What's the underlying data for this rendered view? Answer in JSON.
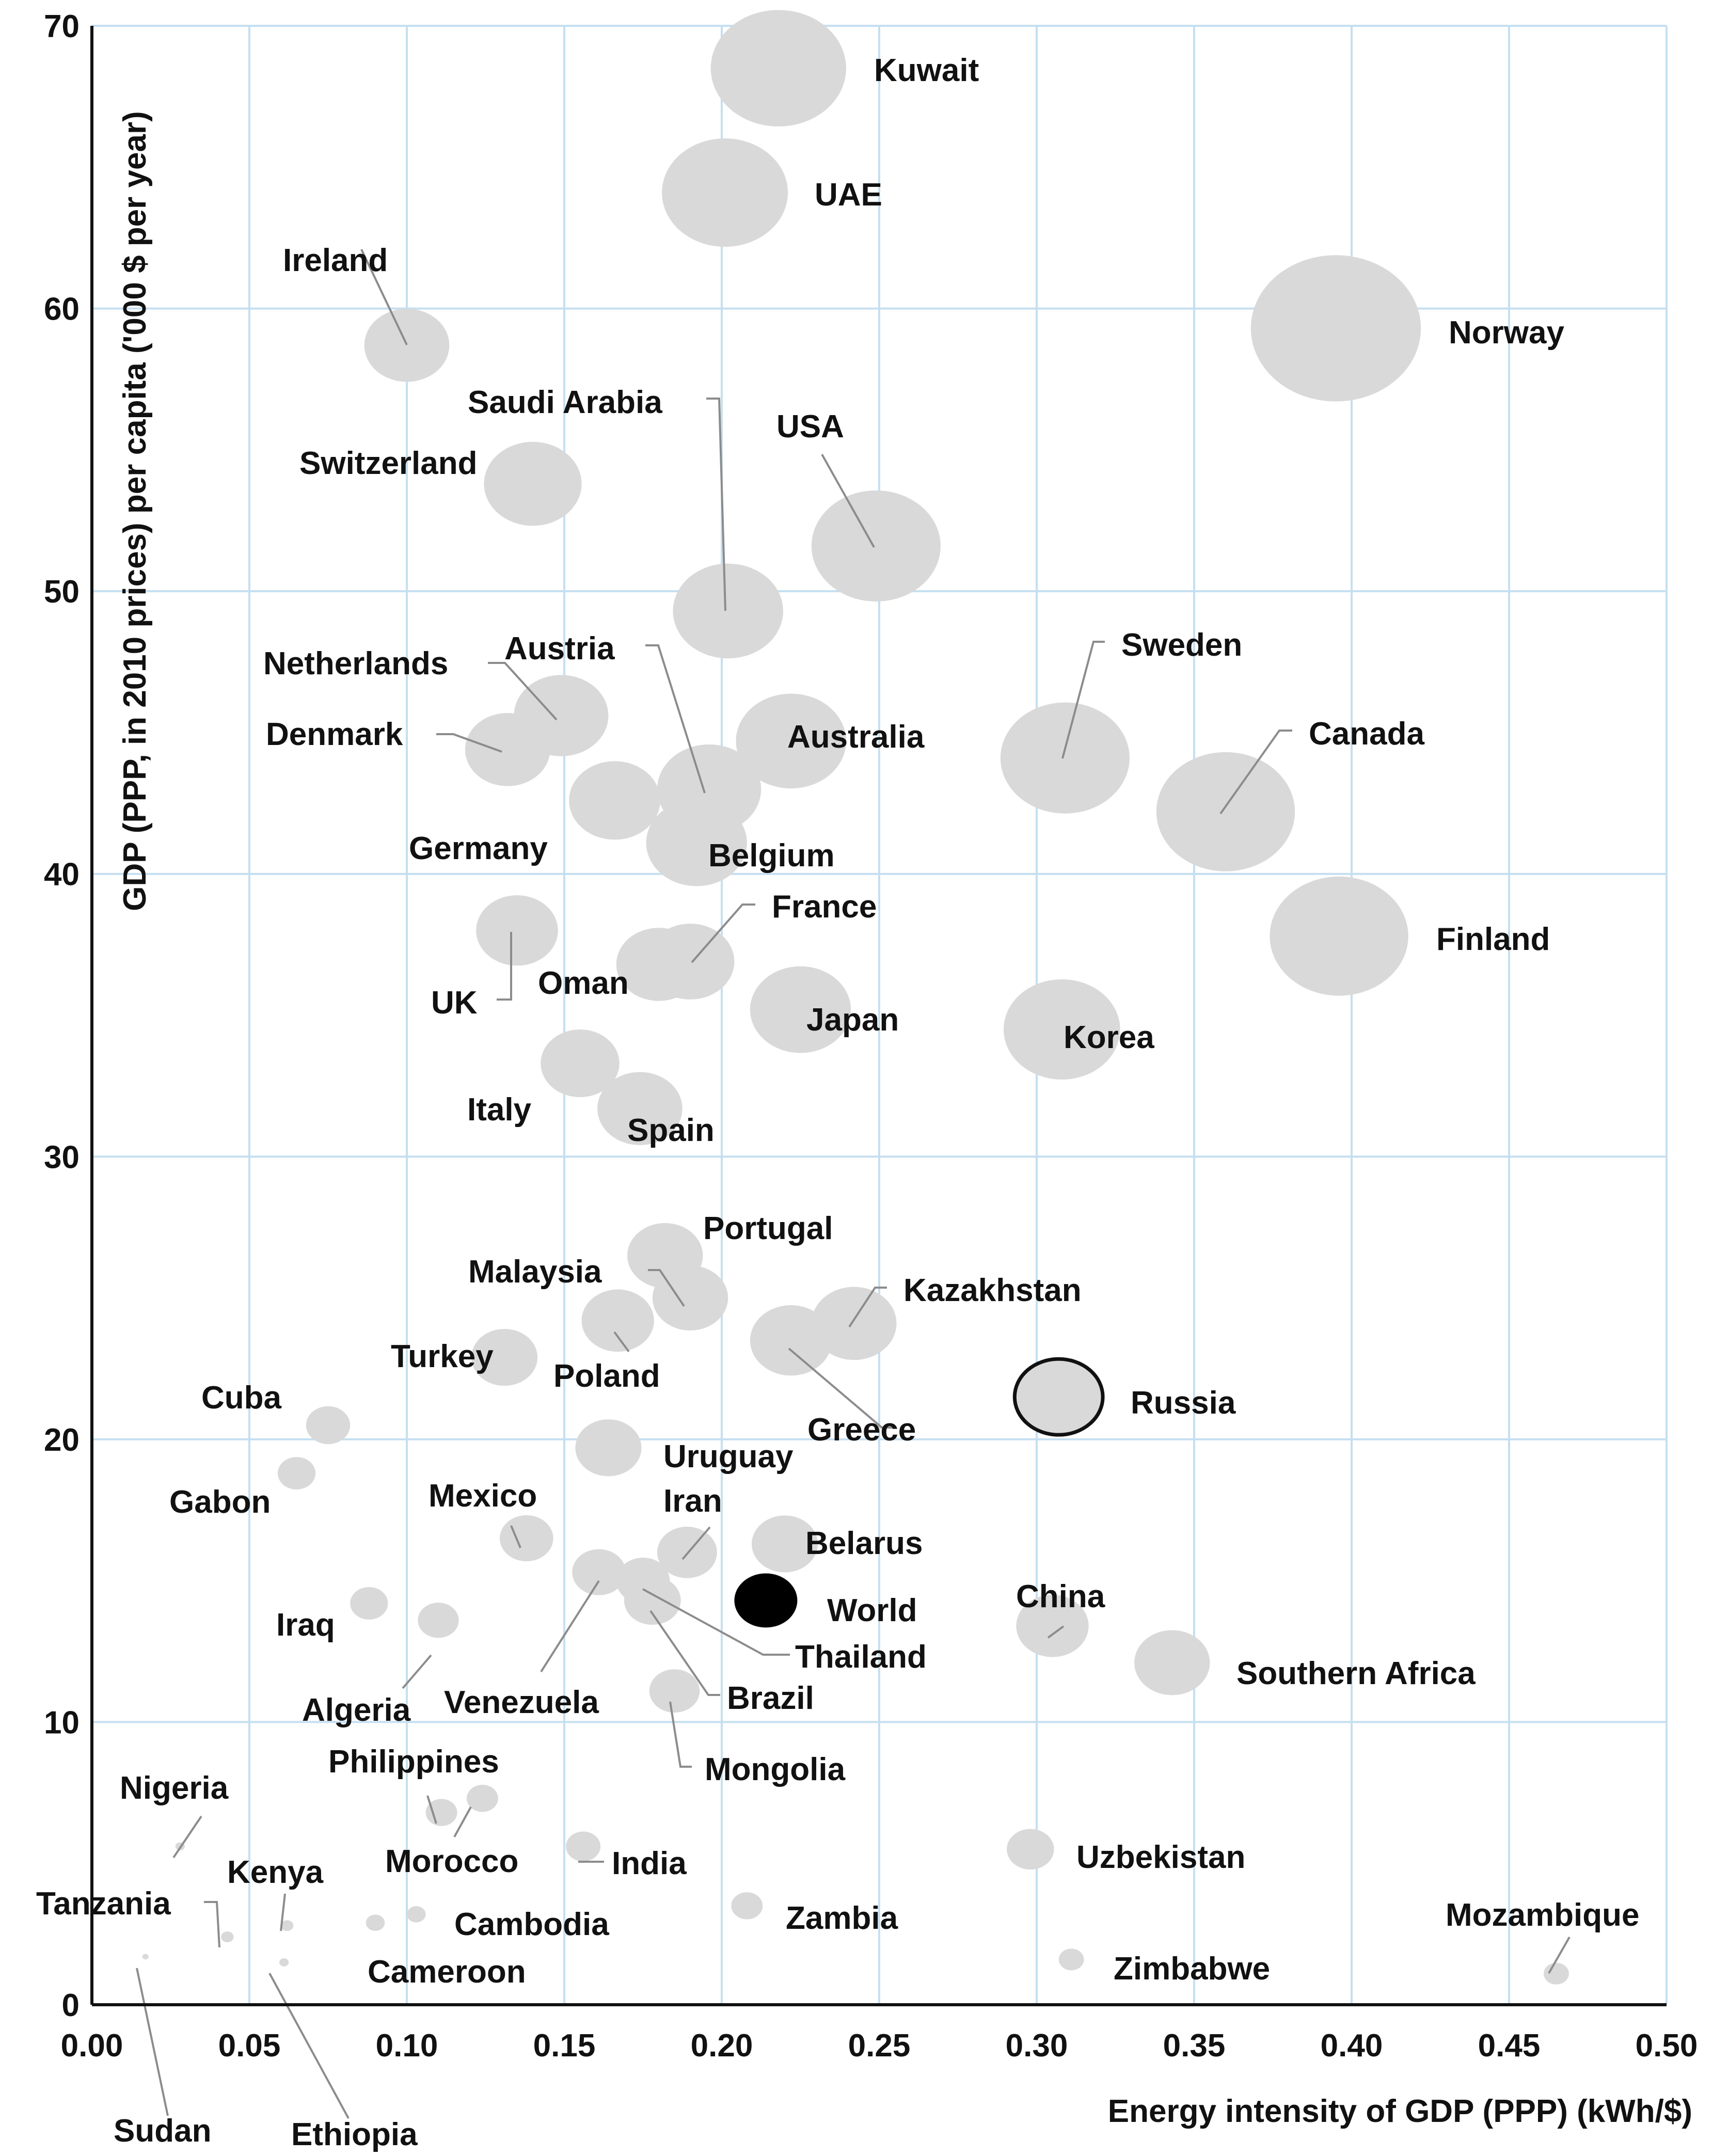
{
  "chart_data": {
    "type": "bubble",
    "title": "",
    "xlabel": "Energy intensity of GDP (PPP) (kWh/$)",
    "ylabel": "GDP (PPP, in 2010 prices) per capita ('000 $ per year)",
    "xlim": [
      0,
      0.5
    ],
    "ylim": [
      0,
      70
    ],
    "x_ticks": [
      "0.00",
      "0.05",
      "0.10",
      "0.15",
      "0.20",
      "0.25",
      "0.30",
      "0.35",
      "0.40",
      "0.45",
      "0.50"
    ],
    "y_ticks": [
      "0",
      "10",
      "20",
      "30",
      "40",
      "50",
      "60",
      "70"
    ],
    "grid": true,
    "colors": {
      "bubble": "#d9d9d9",
      "world": "#000000",
      "russia_outline": "#111111",
      "grid": "#c5dff0",
      "leader": "#8c8c8c"
    },
    "points": [
      {
        "name": "Kuwait",
        "x": 0.218,
        "y": 68.5,
        "size": 0.043
      },
      {
        "name": "UAE",
        "x": 0.201,
        "y": 64.1,
        "size": 0.04
      },
      {
        "name": "Norway",
        "x": 0.395,
        "y": 59.3,
        "size": 0.054
      },
      {
        "name": "Ireland",
        "x": 0.1,
        "y": 58.7,
        "size": 0.027
      },
      {
        "name": "Switzerland",
        "x": 0.14,
        "y": 53.8,
        "size": 0.031
      },
      {
        "name": "USA",
        "x": 0.249,
        "y": 51.6,
        "size": 0.041
      },
      {
        "name": "Saudi Arabia",
        "x": 0.202,
        "y": 49.3,
        "size": 0.035
      },
      {
        "name": "Netherlands",
        "x": 0.149,
        "y": 45.6,
        "size": 0.03
      },
      {
        "name": "Denmark",
        "x": 0.132,
        "y": 44.4,
        "size": 0.027
      },
      {
        "name": "Austria",
        "x": 0.196,
        "y": 43.0,
        "size": 0.033
      },
      {
        "name": "Australia",
        "x": 0.222,
        "y": 44.7,
        "size": 0.035
      },
      {
        "name": "Germany",
        "x": 0.166,
        "y": 42.6,
        "size": 0.029
      },
      {
        "name": "Belgium",
        "x": 0.192,
        "y": 41.1,
        "size": 0.032
      },
      {
        "name": "Sweden",
        "x": 0.309,
        "y": 44.1,
        "size": 0.041
      },
      {
        "name": "Canada",
        "x": 0.36,
        "y": 42.2,
        "size": 0.044
      },
      {
        "name": "Finland",
        "x": 0.396,
        "y": 37.8,
        "size": 0.044
      },
      {
        "name": "UK",
        "x": 0.135,
        "y": 38.0,
        "size": 0.026
      },
      {
        "name": "Oman",
        "x": 0.18,
        "y": 36.8,
        "size": 0.027
      },
      {
        "name": "France",
        "x": 0.19,
        "y": 36.9,
        "size": 0.028
      },
      {
        "name": "Japan",
        "x": 0.225,
        "y": 35.2,
        "size": 0.032
      },
      {
        "name": "Korea",
        "x": 0.308,
        "y": 34.5,
        "size": 0.037
      },
      {
        "name": "Italy",
        "x": 0.155,
        "y": 33.3,
        "size": 0.025
      },
      {
        "name": "Spain",
        "x": 0.174,
        "y": 31.7,
        "size": 0.027
      },
      {
        "name": "Portugal",
        "x": 0.182,
        "y": 26.5,
        "size": 0.024
      },
      {
        "name": "Malaysia",
        "x": 0.19,
        "y": 25.0,
        "size": 0.024
      },
      {
        "name": "Kazakhstan",
        "x": 0.242,
        "y": 24.1,
        "size": 0.027
      },
      {
        "name": "Poland",
        "x": 0.167,
        "y": 24.2,
        "size": 0.023
      },
      {
        "name": "Greece",
        "x": 0.222,
        "y": 23.5,
        "size": 0.026
      },
      {
        "name": "Turkey",
        "x": 0.131,
        "y": 22.9,
        "size": 0.021
      },
      {
        "name": "Russia",
        "x": 0.307,
        "y": 21.5,
        "size": 0.028
      },
      {
        "name": "Cuba",
        "x": 0.075,
        "y": 20.5,
        "size": 0.014
      },
      {
        "name": "Uruguay",
        "x": 0.164,
        "y": 19.7,
        "size": 0.021
      },
      {
        "name": "Gabon",
        "x": 0.065,
        "y": 18.8,
        "size": 0.012
      },
      {
        "name": "Mexico",
        "x": 0.138,
        "y": 16.5,
        "size": 0.017
      },
      {
        "name": "Belarus",
        "x": 0.22,
        "y": 16.3,
        "size": 0.021
      },
      {
        "name": "Iran",
        "x": 0.189,
        "y": 16.0,
        "size": 0.019
      },
      {
        "name": "Venezuela",
        "x": 0.161,
        "y": 15.3,
        "size": 0.017
      },
      {
        "name": "Thailand",
        "x": 0.175,
        "y": 15.0,
        "size": 0.017
      },
      {
        "name": "World",
        "x": 0.214,
        "y": 14.3,
        "size": 0.02
      },
      {
        "name": "Brazil",
        "x": 0.178,
        "y": 14.3,
        "size": 0.018
      },
      {
        "name": "China",
        "x": 0.305,
        "y": 13.4,
        "size": 0.023
      },
      {
        "name": "Iraq",
        "x": 0.088,
        "y": 14.2,
        "size": 0.012
      },
      {
        "name": "Algeria",
        "x": 0.11,
        "y": 13.6,
        "size": 0.013
      },
      {
        "name": "Southern Africa",
        "x": 0.343,
        "y": 12.1,
        "size": 0.024
      },
      {
        "name": "Mongolia",
        "x": 0.185,
        "y": 11.1,
        "size": 0.016
      },
      {
        "name": "Philippines",
        "x": 0.124,
        "y": 7.3,
        "size": 0.01
      },
      {
        "name": "Morocco",
        "x": 0.111,
        "y": 6.8,
        "size": 0.01
      },
      {
        "name": "Nigeria",
        "x": 0.028,
        "y": 5.6,
        "size": 0.003
      },
      {
        "name": "India",
        "x": 0.156,
        "y": 5.6,
        "size": 0.011
      },
      {
        "name": "Uzbekistan",
        "x": 0.298,
        "y": 5.5,
        "size": 0.015
      },
      {
        "name": "Zambia",
        "x": 0.208,
        "y": 3.5,
        "size": 0.01
      },
      {
        "name": "Kenya",
        "x": 0.062,
        "y": 2.8,
        "size": 0.004
      },
      {
        "name": "Cambodia",
        "x": 0.103,
        "y": 3.2,
        "size": 0.006
      },
      {
        "name": "Cameroon",
        "x": 0.09,
        "y": 2.9,
        "size": 0.006
      },
      {
        "name": "Tanzania",
        "x": 0.043,
        "y": 2.4,
        "size": 0.004
      },
      {
        "name": "Zimbabwe",
        "x": 0.311,
        "y": 1.6,
        "size": 0.008
      },
      {
        "name": "Mozambique",
        "x": 0.465,
        "y": 1.1,
        "size": 0.008
      },
      {
        "name": "Ethiopia",
        "x": 0.061,
        "y": 1.5,
        "size": 0.003
      },
      {
        "name": "Sudan",
        "x": 0.017,
        "y": 1.7,
        "size": 0.002
      }
    ]
  }
}
